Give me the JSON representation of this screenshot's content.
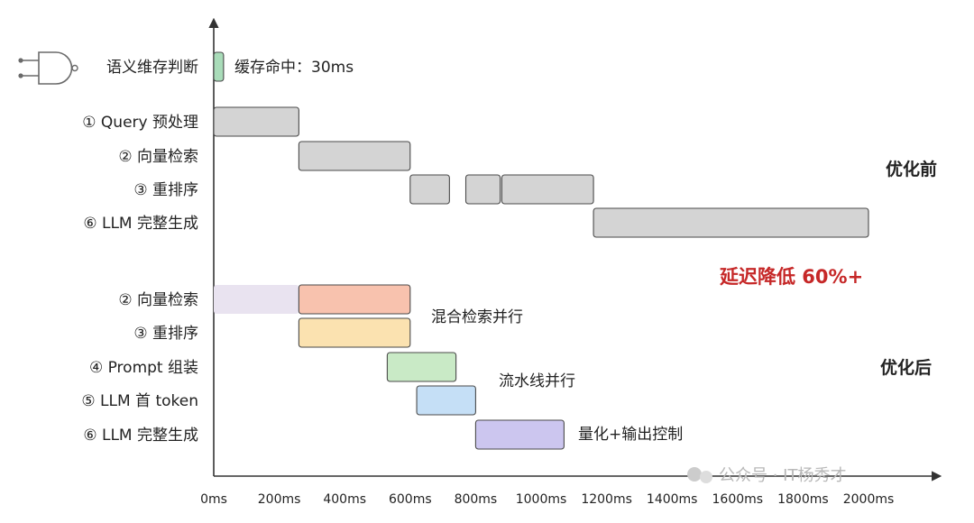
{
  "chart_data": {
    "type": "gantt",
    "x_unit": "ms",
    "xlim": [
      0,
      2100
    ],
    "x_ticks": [
      0,
      200,
      400,
      600,
      800,
      1000,
      1200,
      1400,
      1600,
      1800,
      2000
    ],
    "x_tick_labels": [
      "0ms",
      "200ms",
      "400ms",
      "600ms",
      "800ms",
      "1000ms",
      "1200ms",
      "1400ms",
      "1600ms",
      "1800ms",
      "2000ms"
    ],
    "rows": [
      {
        "label": "语义维存判断",
        "icon": "and-gate-icon",
        "color": "#a9dcb9",
        "segments": [
          {
            "start": 0,
            "end": 30
          }
        ],
        "annotation": "缓存命中：30ms"
      },
      {
        "label": "① Query 预处理",
        "color": "#d4d4d4",
        "segments": [
          {
            "start": 0,
            "end": 260
          }
        ]
      },
      {
        "label": "② 向量检索",
        "color": "#d4d4d4",
        "segments": [
          {
            "start": 260,
            "end": 600
          }
        ]
      },
      {
        "label": "③ 重排序",
        "color": "#d4d4d4",
        "segments": [
          {
            "start": 600,
            "end": 720
          },
          {
            "start": 770,
            "end": 875
          },
          {
            "start": 880,
            "end": 1160
          }
        ]
      },
      {
        "label": "⑥ LLM 完整生成",
        "color": "#d4d4d4",
        "segments": [
          {
            "start": 1160,
            "end": 2000
          }
        ]
      },
      {
        "label": "② 向量检索",
        "color": "#f8c2ae",
        "segments": [
          {
            "start": 0,
            "end": 260,
            "color": "#e9e3f0",
            "faded": true
          },
          {
            "start": 260,
            "end": 600
          }
        ]
      },
      {
        "label": "③ 重排序",
        "color": "#fbe2b0",
        "segments": [
          {
            "start": 260,
            "end": 600
          }
        ]
      },
      {
        "label": "④ Prompt 组装",
        "color": "#c9eac6",
        "segments": [
          {
            "start": 530,
            "end": 740
          }
        ]
      },
      {
        "label": "⑤ LLM 首 token",
        "color": "#c5dff6",
        "segments": [
          {
            "start": 620,
            "end": 800
          }
        ]
      },
      {
        "label": "⑥ LLM 完整生成",
        "color": "#ccc6ef",
        "segments": [
          {
            "start": 800,
            "end": 1070
          }
        ]
      }
    ],
    "annotations": {
      "before_label": "优化前",
      "after_label": "优化后",
      "latency": "延迟降低 60%+",
      "latency_color": "#c62828",
      "hybrid": "混合检索并行",
      "pipeline": "流水线并行",
      "quant": "量化+输出控制"
    },
    "watermark": "公众号 · IT杨秀才"
  }
}
